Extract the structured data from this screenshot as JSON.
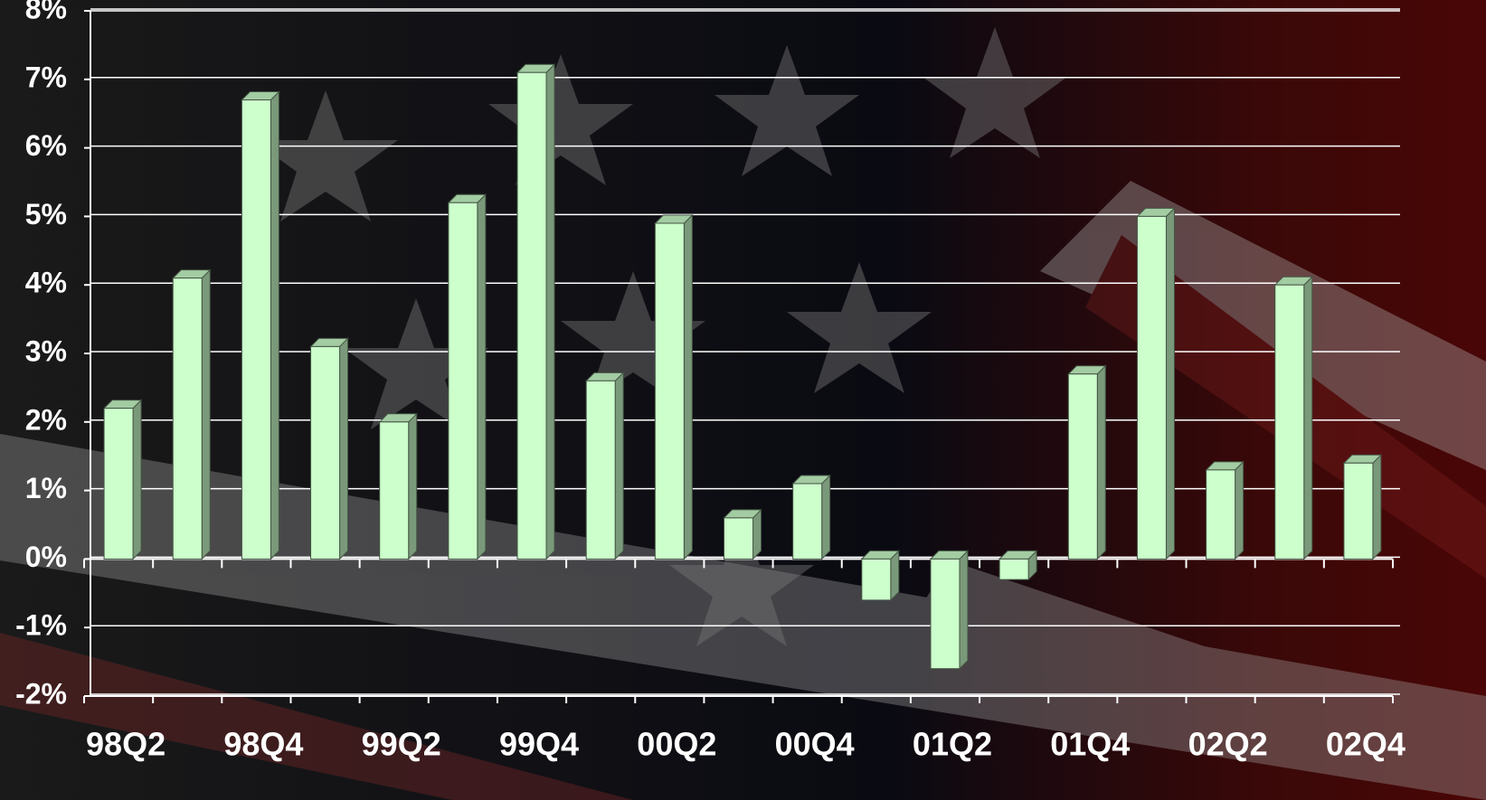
{
  "chart_data": {
    "type": "bar",
    "categories": [
      "98Q2",
      null,
      "98Q4",
      null,
      "99Q2",
      null,
      "99Q4",
      null,
      "00Q2",
      null,
      "00Q4",
      null,
      "01Q2",
      null,
      "01Q4",
      null,
      "02Q2",
      null,
      "02Q4"
    ],
    "values": [
      2.2,
      4.1,
      6.7,
      3.1,
      2.0,
      5.2,
      7.1,
      2.6,
      4.9,
      0.6,
      1.1,
      -0.6,
      -1.6,
      -0.3,
      2.7,
      5.0,
      1.3,
      4.0,
      1.4
    ],
    "color": "#ccffcc",
    "ylim": [
      -2,
      8
    ],
    "yticks": [
      {
        "value": -2,
        "label": "-2%"
      },
      {
        "value": -1,
        "label": "-1%"
      },
      {
        "value": 0,
        "label": "0%"
      },
      {
        "value": 1,
        "label": "1%"
      },
      {
        "value": 2,
        "label": "2%"
      },
      {
        "value": 3,
        "label": "3%"
      },
      {
        "value": 4,
        "label": "4%"
      },
      {
        "value": 5,
        "label": "5%"
      },
      {
        "value": 6,
        "label": "6%"
      },
      {
        "value": 7,
        "label": "7%"
      },
      {
        "value": 8,
        "label": "8%"
      }
    ],
    "grid": true
  }
}
